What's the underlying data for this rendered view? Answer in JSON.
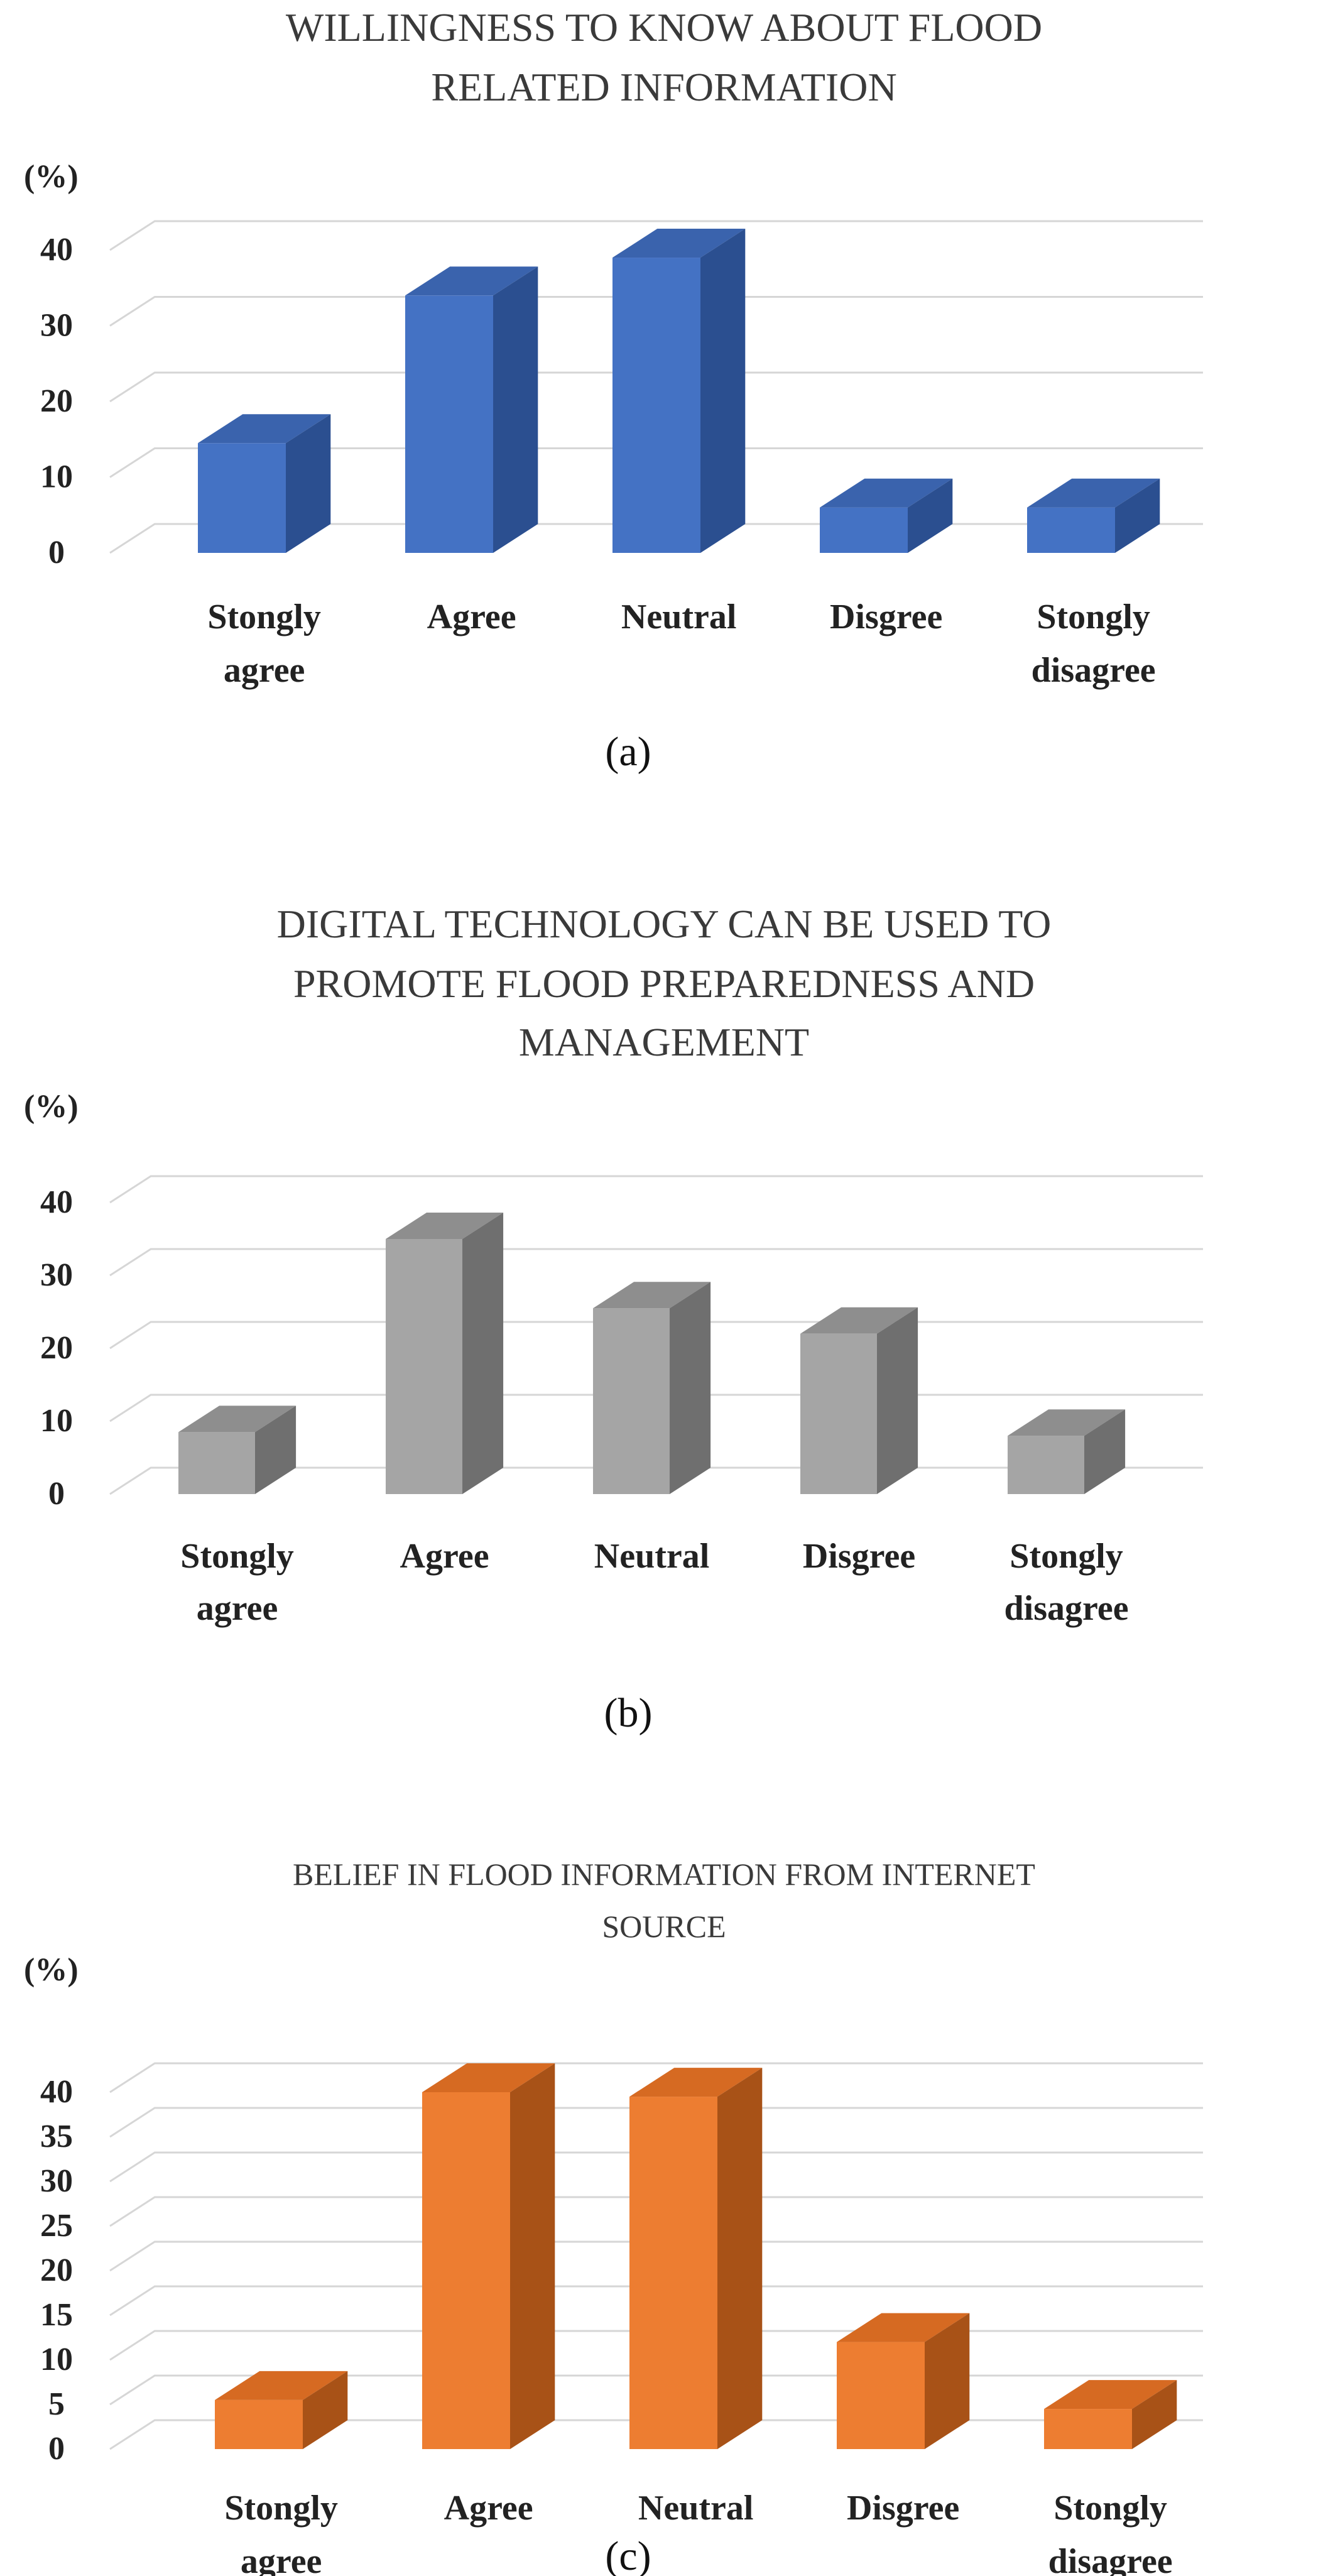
{
  "chart_data": [
    {
      "type": "bar",
      "panel": "(a)",
      "title": [
        "WILLINGNESS TO KNOW ABOUT FLOOD",
        "RELATED INFORMATION"
      ],
      "unit_label": "(%)",
      "categories": [
        [
          "Stongly",
          "agree"
        ],
        [
          "Agree"
        ],
        [
          "Neutral"
        ],
        [
          "Disgree"
        ],
        [
          "Stongly",
          "disagree"
        ]
      ],
      "values": [
        14.5,
        34,
        39,
        6,
        6
      ],
      "yticks": [
        0,
        10,
        20,
        30,
        40
      ],
      "ylim": [
        0,
        40
      ],
      "colors": {
        "front": "#4472c4",
        "top": "#3a63ad",
        "side": "#2b4f90"
      }
    },
    {
      "type": "bar",
      "panel": "(b)",
      "title": [
        "DIGITAL TECHNOLOGY CAN BE USED TO",
        "PROMOTE FLOOD PREPAREDNESS AND",
        "MANAGEMENT"
      ],
      "unit_label": "(%)",
      "categories": [
        [
          "Stongly",
          "agree"
        ],
        [
          "Agree"
        ],
        [
          "Neutral"
        ],
        [
          "Disgree"
        ],
        [
          "Stongly",
          "disagree"
        ]
      ],
      "values": [
        8.5,
        35,
        25.5,
        22,
        8
      ],
      "yticks": [
        0,
        10,
        20,
        30,
        40
      ],
      "ylim": [
        0,
        40
      ],
      "colors": {
        "front": "#a5a5a5",
        "top": "#8e8e8e",
        "side": "#6f6f6f"
      }
    },
    {
      "type": "bar",
      "panel": "(c)",
      "title": [
        "BELIEF IN FLOOD INFORMATION FROM INTERNET",
        "SOURCE"
      ],
      "unit_label": "(%)",
      "categories": [
        [
          "Stongly",
          "agree"
        ],
        [
          "Agree"
        ],
        [
          "Neutral"
        ],
        [
          "Disgree"
        ],
        [
          "Stongly",
          "disagree"
        ]
      ],
      "values": [
        5.5,
        40,
        39.5,
        12,
        4.5
      ],
      "yticks": [
        0,
        5,
        10,
        15,
        20,
        25,
        30,
        35,
        40
      ],
      "ylim": [
        0,
        40
      ],
      "colors": {
        "front": "#ed7d31",
        "top": "#d66a22",
        "side": "#a85217"
      }
    }
  ]
}
